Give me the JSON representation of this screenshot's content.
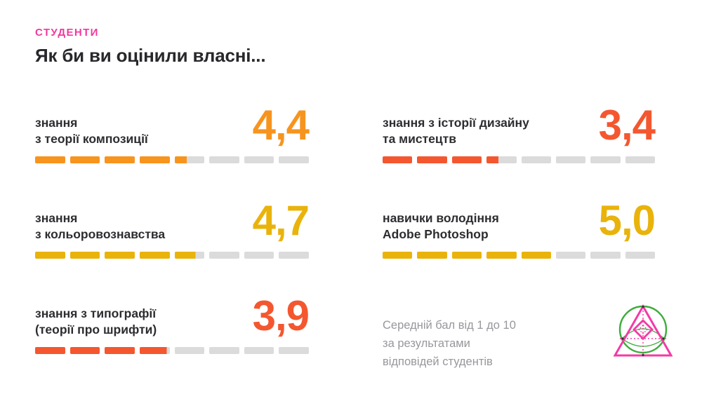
{
  "header": {
    "eyebrow": "СТУДЕНТИ",
    "title": "Як би ви оцінили власні..."
  },
  "footnote": "Середній бал від 1 до 10\nза результатами\nвідповідей студентів",
  "colors": {
    "accent_pink": "#f1399f",
    "orange": "#f7941e",
    "red_orange": "#f4572f",
    "gold": "#e9b30b",
    "track_gray": "#dbdbdb",
    "text_dark": "#2d2d31",
    "text_gray": "#97979d",
    "logo_pink": "#f43aa6",
    "logo_green": "#3cad3c"
  },
  "chart_data": {
    "type": "bar",
    "title": "Як би ви оцінили власні...",
    "group_label": "СТУДЕНТИ",
    "note": "Середній бал від 1 до 10 за результатами відповідей студентів",
    "scale_min": 1,
    "scale_max": 10,
    "segments_per_bar": 8,
    "segment_unit": 1,
    "track_color": "#dbdbdb",
    "legend": "none",
    "items": [
      {
        "label": "знання\nз теорії композиції",
        "value": 4.4,
        "display": "4,4",
        "color": "#f7941e"
      },
      {
        "label": "знання з історії дизайну\nта мистецтв",
        "value": 3.4,
        "display": "3,4",
        "color": "#f4572f"
      },
      {
        "label": "знання\nз кольоровознавства",
        "value": 4.7,
        "display": "4,7",
        "color": "#e9b30b"
      },
      {
        "label": "навички володіння\nAdobe Photoshop",
        "value": 5.0,
        "display": "5,0",
        "color": "#e9b30b"
      },
      {
        "label": "знання з типографії\n(теорії про шрифти)",
        "value": 3.9,
        "display": "3,9",
        "color": "#f4572f"
      }
    ]
  }
}
